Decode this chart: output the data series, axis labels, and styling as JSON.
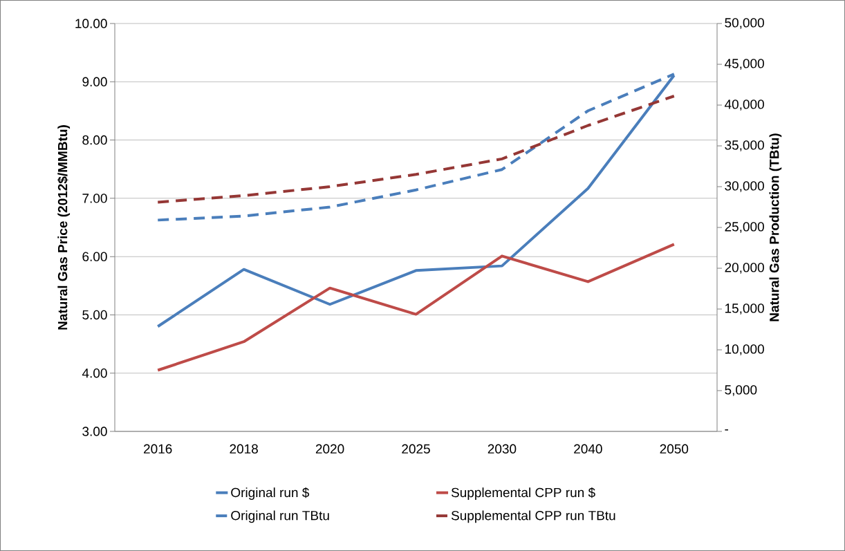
{
  "chart_data": {
    "type": "line",
    "ylabel": "Natural Gas Price (2012$/MMBtu)",
    "y2label": "Natural Gas Production (TBtu)",
    "categories": [
      "2016",
      "2018",
      "2020",
      "2025",
      "2030",
      "2040",
      "2050"
    ],
    "series": [
      {
        "name": "Original run $",
        "color": "#4a7ebb",
        "line_style": "solid",
        "values": [
          4.8,
          5.78,
          5.18,
          5.76,
          5.84,
          7.17,
          9.11
        ]
      },
      {
        "name": "Supplemental CPP run $",
        "color": "#be4b48",
        "line_style": "solid",
        "values": [
          4.05,
          4.54,
          5.46,
          5.01,
          6.01,
          5.57,
          6.21
        ]
      },
      {
        "name": "Original run TBtu",
        "color": "#4a7ebb",
        "line_style": "dashed",
        "axis": "y2",
        "values": [
          25900,
          26400,
          27500,
          29600,
          32100,
          39300,
          43800
        ]
      },
      {
        "name": "Supplemental CPP run TBtu",
        "color": "#953735",
        "line_style": "dashed",
        "axis": "y2",
        "values": [
          28100,
          28900,
          30000,
          31500,
          33400,
          37500,
          41100
        ]
      }
    ],
    "ylim": [
      3,
      10
    ],
    "yticks": [
      {
        "value": 3,
        "label": "3.00"
      },
      {
        "value": 4,
        "label": "4.00"
      },
      {
        "value": 5,
        "label": "5.00"
      },
      {
        "value": 6,
        "label": "6.00"
      },
      {
        "value": 7,
        "label": "7.00"
      },
      {
        "value": 8,
        "label": "8.00"
      },
      {
        "value": 9,
        "label": "9.00"
      },
      {
        "value": 10,
        "label": "10.00"
      }
    ],
    "y2lim": [
      0,
      50000
    ],
    "y2ticks": [
      {
        "value": 0,
        "label": "-"
      },
      {
        "value": 5000,
        "label": "5,000"
      },
      {
        "value": 10000,
        "label": "10,000"
      },
      {
        "value": 15000,
        "label": "15,000"
      },
      {
        "value": 20000,
        "label": "20,000"
      },
      {
        "value": 25000,
        "label": "25,000"
      },
      {
        "value": 30000,
        "label": "30,000"
      },
      {
        "value": 35000,
        "label": "35,000"
      },
      {
        "value": 40000,
        "label": "40,000"
      },
      {
        "value": 45000,
        "label": "45,000"
      },
      {
        "value": 50000,
        "label": "50,000"
      }
    ],
    "grid": "y",
    "legend": "bottom",
    "marker": "none"
  }
}
